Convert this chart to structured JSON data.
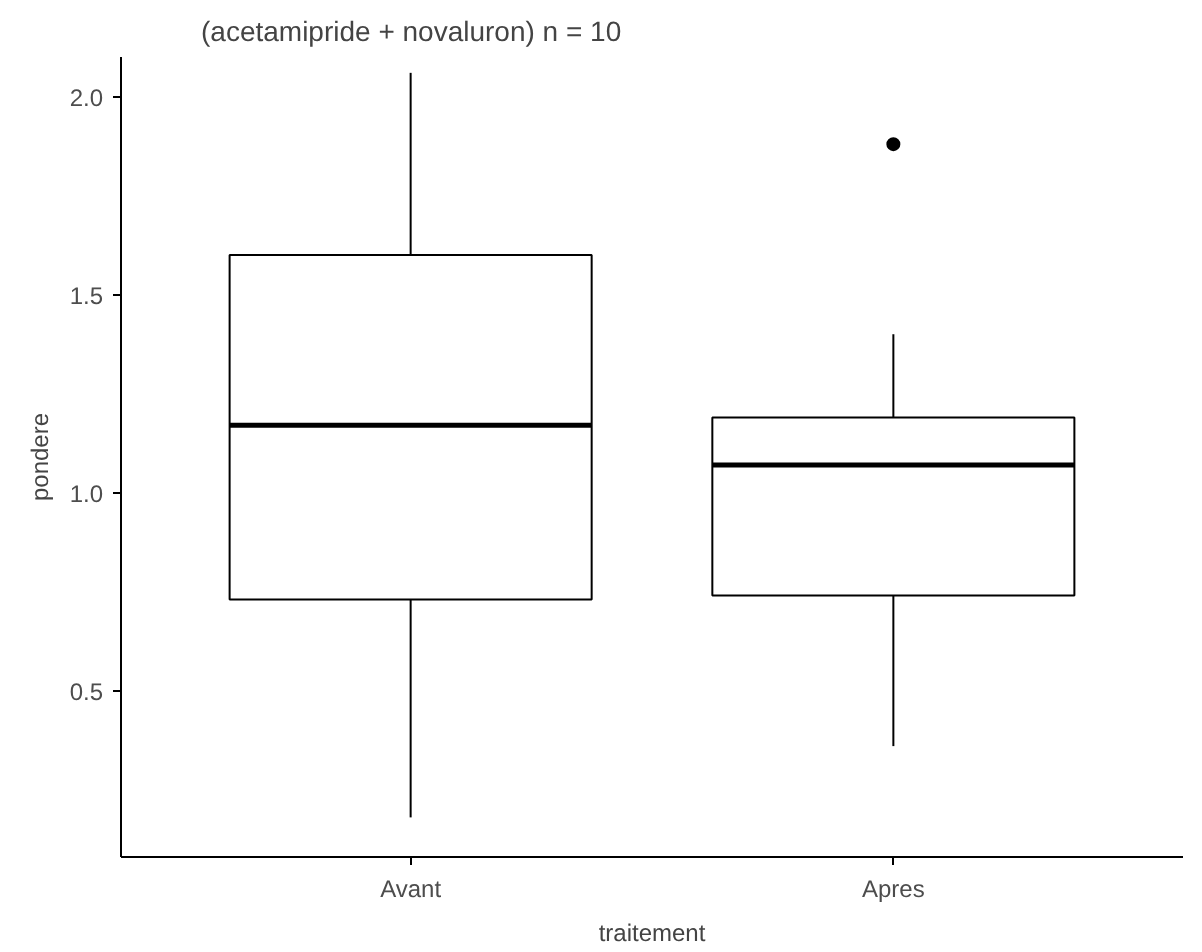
{
  "chart_data": {
    "type": "box",
    "title": "(acetamipride + novaluron)     n = 10",
    "xlabel": "traitement",
    "ylabel": "pondere",
    "categories": [
      "Avant",
      "Apres"
    ],
    "boxes": [
      {
        "low": 0.18,
        "q1": 0.73,
        "median": 1.17,
        "q3": 1.6,
        "high": 2.06
      },
      {
        "low": 0.36,
        "q1": 0.74,
        "median": 1.07,
        "q3": 1.19,
        "high": 1.4,
        "outliers": [
          1.88
        ]
      }
    ],
    "ylim": [
      0.08,
      2.1
    ],
    "yticks": [
      {
        "value": 0.5,
        "label": "0.5"
      },
      {
        "value": 1.0,
        "label": "1.0"
      },
      {
        "value": 1.5,
        "label": "1.5"
      },
      {
        "value": 2.0,
        "label": "2.0"
      }
    ],
    "grid": false
  }
}
